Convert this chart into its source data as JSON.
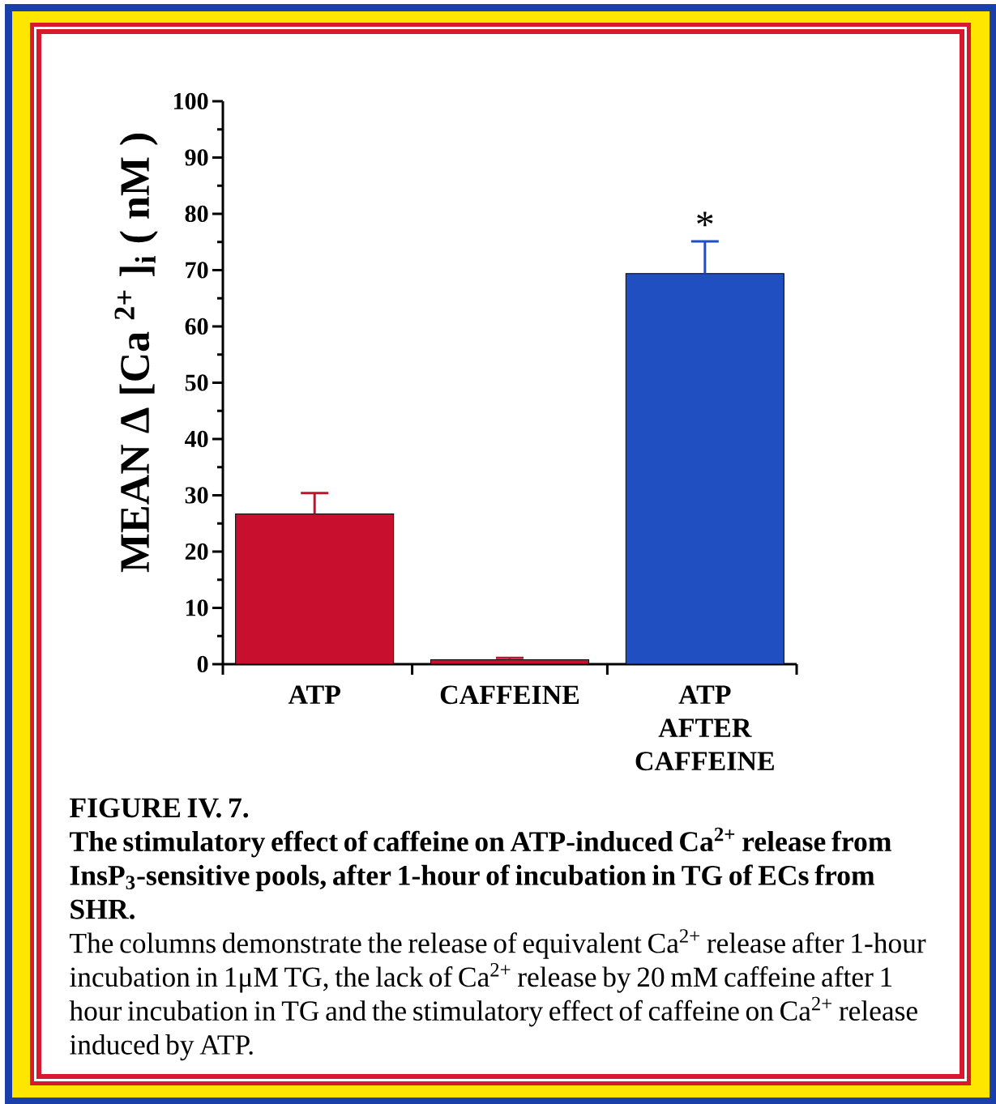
{
  "chart_data": {
    "type": "bar",
    "title": "FIGURE IV. 7.",
    "subtitle": "The stimulatory effect of caffeine on ATP-induced Ca$^{2+}$ release from InsP$_{3}$-sensitive pools, after 1-hour of incubation in TG of ECs from SHR.",
    "ylabel": "MEAN Δ [Ca $^{2+}$ ]$_{i}$ ( nM )",
    "categories": [
      "ATP",
      "CAFFEINE",
      "ATP AFTER CAFFEINE"
    ],
    "values": [
      26.7,
      0.8,
      69.4
    ],
    "errors": [
      [
        26.7,
        30.4
      ],
      [
        0.8,
        1.1
      ],
      [
        69.4,
        75.1
      ]
    ],
    "colors": [
      "#c8102e",
      "#c8102e",
      "#1f4fc0"
    ],
    "ylim": [
      0,
      100
    ],
    "yticks": [
      0,
      {
        "value": 5,
        "label": null
      },
      10,
      {
        "value": 15,
        "label": null
      },
      20,
      {
        "value": 25,
        "label": null
      },
      30,
      {
        "value": 35,
        "label": null
      },
      40,
      {
        "value": 45,
        "label": null
      },
      50,
      {
        "value": 55,
        "label": null
      },
      60,
      {
        "value": 65,
        "label": null
      },
      70,
      {
        "value": 75,
        "label": null
      },
      80,
      {
        "value": 85,
        "label": null
      },
      90,
      {
        "value": 95,
        "label": null
      },
      100
    ],
    "annotations": [
      "*",
      "The columns demonstrate the release of equivalent Ca$^{2+}$ release after 1-hour incubation in 1μM TG, the lack of Ca$^{2+}$ release by 20 mM caffeine after 1 hour incubation in TG and the stimulatory effect of caffeine on Ca$^{2+}$ release induced by ATP."
    ]
  }
}
